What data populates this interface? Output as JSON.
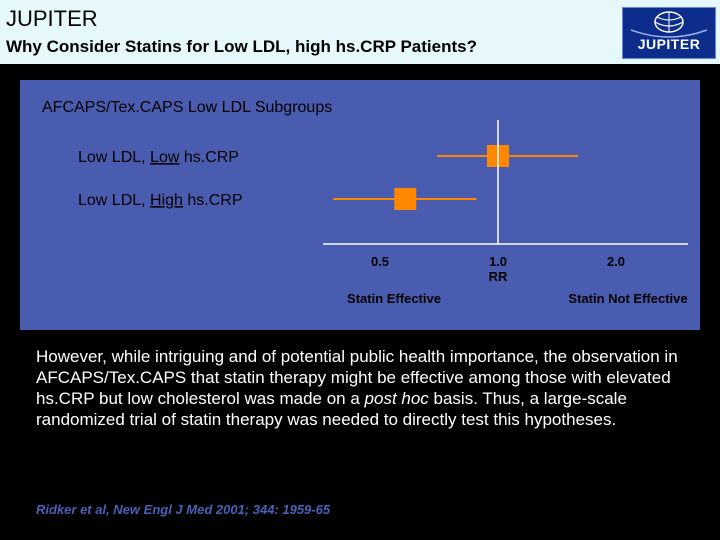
{
  "header": {
    "title": "JUPITER",
    "subtitle": "Why Consider Statins for Low LDL, high hs.CRP Patients?",
    "logo_text": "JUPITER"
  },
  "chart_data": {
    "type": "forest",
    "title": "AFCAPS/Tex.CAPS Low LDL Subgroups",
    "rows": [
      {
        "label_prefix": "Low LDL, ",
        "label_underlined": "Low",
        "label_suffix": " hs.CRP",
        "estimate": 1.0,
        "ci": [
          0.7,
          1.6
        ]
      },
      {
        "label_prefix": "Low LDL, ",
        "label_underlined": "High",
        "label_suffix": " hs.CRP",
        "estimate": 0.58,
        "ci": [
          0.38,
          0.88
        ]
      }
    ],
    "x_scale": "log",
    "x_ticks": [
      {
        "value": 0.5,
        "label": "0.5"
      },
      {
        "value": 1.0,
        "label": "1.0"
      },
      {
        "value": 2.0,
        "label": "2.0"
      }
    ],
    "xlabel": "RR",
    "x_annotations": {
      "left": "Statin Effective",
      "right": "Statin Not Effective"
    },
    "colors": {
      "marker": "#ff8800",
      "ci_line": "#ff8800",
      "reference_line": "#ffffff",
      "text": "#000000"
    }
  },
  "body": {
    "text_before_italic": "However, while intriguing and of potential public health importance, the observation in AFCAPS/Tex.CAPS that statin therapy might be effective among those with elevated hs.CRP but low cholesterol was made on a ",
    "italic": "post hoc",
    "text_after_italic": " basis. Thus, a large-scale randomized trial of statin therapy was needed to directly test this hypotheses."
  },
  "citation": "Ridker et al, New Engl J Med 2001; 344: 1959-65"
}
